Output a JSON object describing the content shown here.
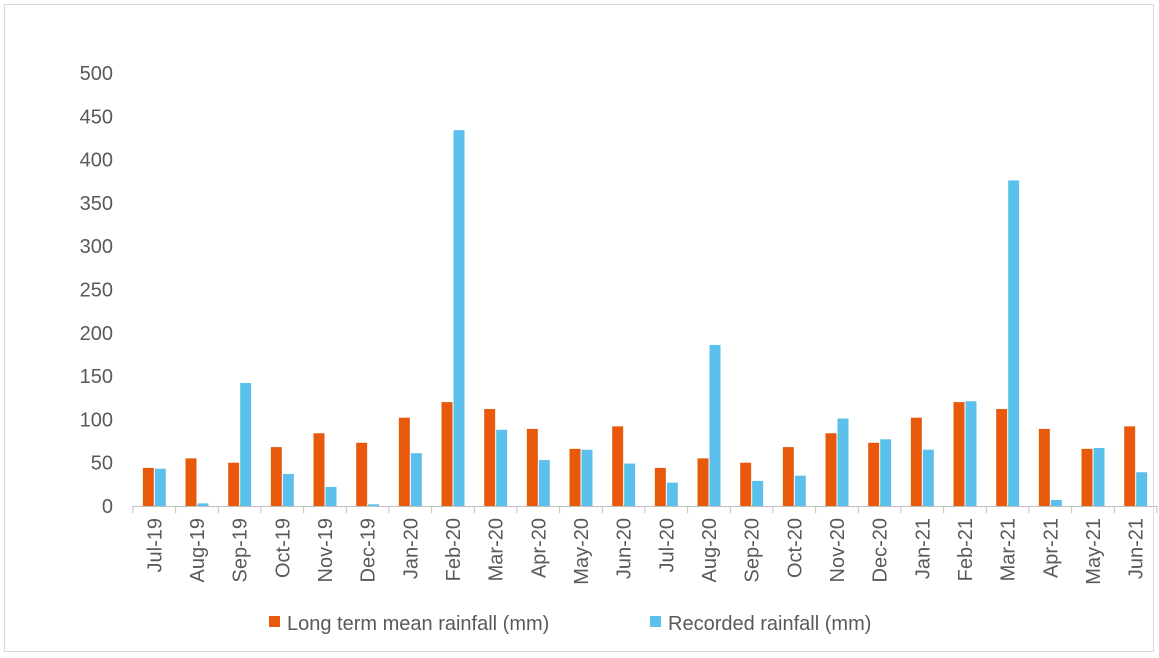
{
  "chart_data": {
    "type": "bar",
    "title": "",
    "xlabel": "",
    "ylabel": "",
    "ylim": [
      0,
      500
    ],
    "yticks": [
      0,
      50,
      100,
      150,
      200,
      250,
      300,
      350,
      400,
      450,
      500
    ],
    "grid": false,
    "legend_position": "bottom",
    "categories": [
      "Jul-19",
      "Aug-19",
      "Sep-19",
      "Oct-19",
      "Nov-19",
      "Dec-19",
      "Jan-20",
      "Feb-20",
      "Mar-20",
      "Apr-20",
      "May-20",
      "Jun-20",
      "Jul-20",
      "Aug-20",
      "Sep-20",
      "Oct-20",
      "Nov-20",
      "Dec-20",
      "Jan-21",
      "Feb-21",
      "Mar-21",
      "Apr-21",
      "May-21",
      "Jun-21"
    ],
    "series": [
      {
        "name": "Long term mean rainfall (mm)",
        "color": "#e8590c",
        "values": [
          44,
          55,
          50,
          68,
          84,
          73,
          102,
          120,
          112,
          89,
          66,
          92,
          44,
          55,
          50,
          68,
          84,
          73,
          102,
          120,
          112,
          89,
          66,
          92
        ]
      },
      {
        "name": "Recorded rainfall (mm)",
        "color": "#5bc0eb",
        "values": [
          43,
          3,
          142,
          37,
          22,
          2,
          61,
          434,
          88,
          53,
          65,
          49,
          27,
          186,
          29,
          35,
          101,
          77,
          65,
          121,
          376,
          7,
          67,
          39
        ]
      }
    ]
  }
}
